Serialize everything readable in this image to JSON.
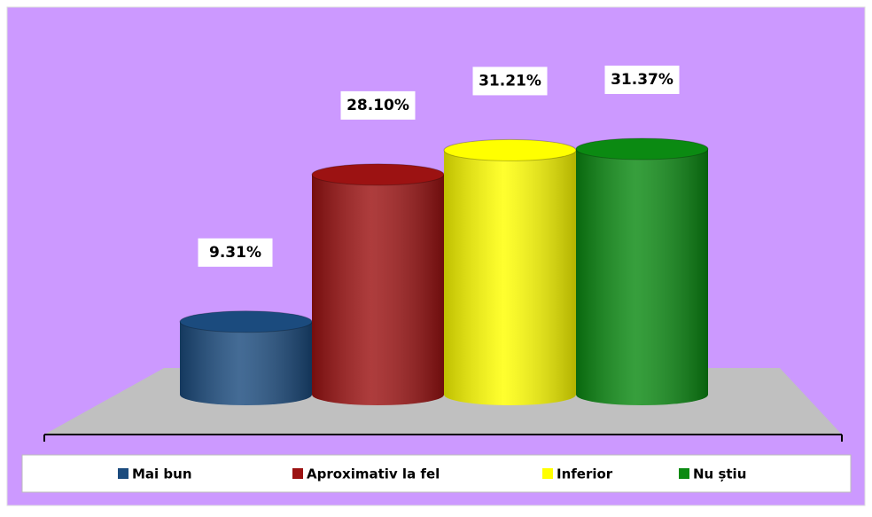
{
  "chart_data": {
    "type": "bar",
    "categories": [
      null
    ],
    "series": [
      {
        "name": "Mai bun",
        "color": "#1b4b7e",
        "values": [
          9.31
        ],
        "value_labels": [
          "9.31%"
        ]
      },
      {
        "name": "Aproximativ la fel",
        "color": "#9c1212",
        "values": [
          28.1
        ],
        "value_labels": [
          "28.10%"
        ]
      },
      {
        "name": "Inferior",
        "color": "#ffff00",
        "values": [
          31.21
        ],
        "value_labels": [
          "31.21%"
        ]
      },
      {
        "name": "Nu știu",
        "color": "#0b8a12",
        "values": [
          31.37
        ],
        "value_labels": [
          "31.37%"
        ]
      }
    ],
    "legend": "bottom"
  }
}
